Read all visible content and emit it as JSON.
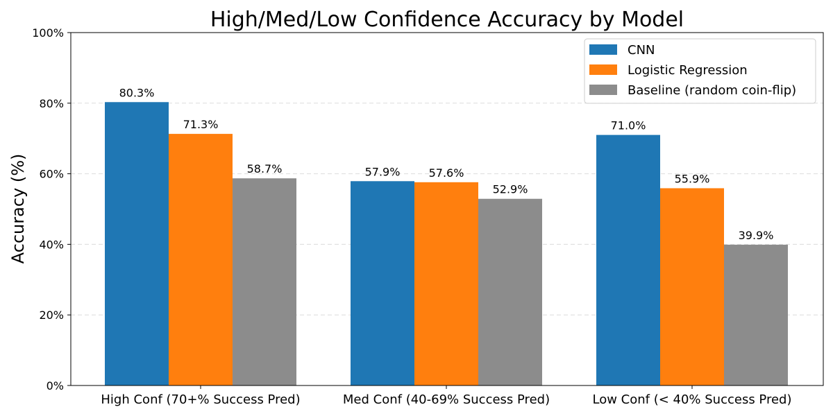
{
  "chart_data": {
    "type": "bar",
    "title": "High/Med/Low Confidence Accuracy by Model",
    "xlabel": "",
    "ylabel": "Accuracy (%)",
    "categories": [
      "High Conf (70+% Success Pred)",
      "Med Conf (40-69% Success Pred)",
      "Low Conf (< 40% Success Pred)"
    ],
    "series": [
      {
        "name": "CNN",
        "color": "#1f77b4",
        "values": [
          80.3,
          57.9,
          71.0
        ]
      },
      {
        "name": "Logistic Regression",
        "color": "#ff7f0e",
        "values": [
          71.3,
          57.6,
          55.9
        ]
      },
      {
        "name": "Baseline (random coin-flip)",
        "color": "#8c8c8c",
        "values": [
          58.7,
          52.9,
          39.9
        ]
      }
    ],
    "data_labels": [
      [
        "80.3%",
        "57.9%",
        "71.0%"
      ],
      [
        "71.3%",
        "57.6%",
        "55.9%"
      ],
      [
        "58.7%",
        "52.9%",
        "39.9%"
      ]
    ],
    "ylim": [
      0,
      100
    ],
    "yticks": [
      0,
      20,
      40,
      60,
      80,
      100
    ],
    "ytick_labels": [
      "0%",
      "20%",
      "40%",
      "60%",
      "80%",
      "100%"
    ],
    "grid": "y-dashed",
    "legend_position": "top-right"
  }
}
